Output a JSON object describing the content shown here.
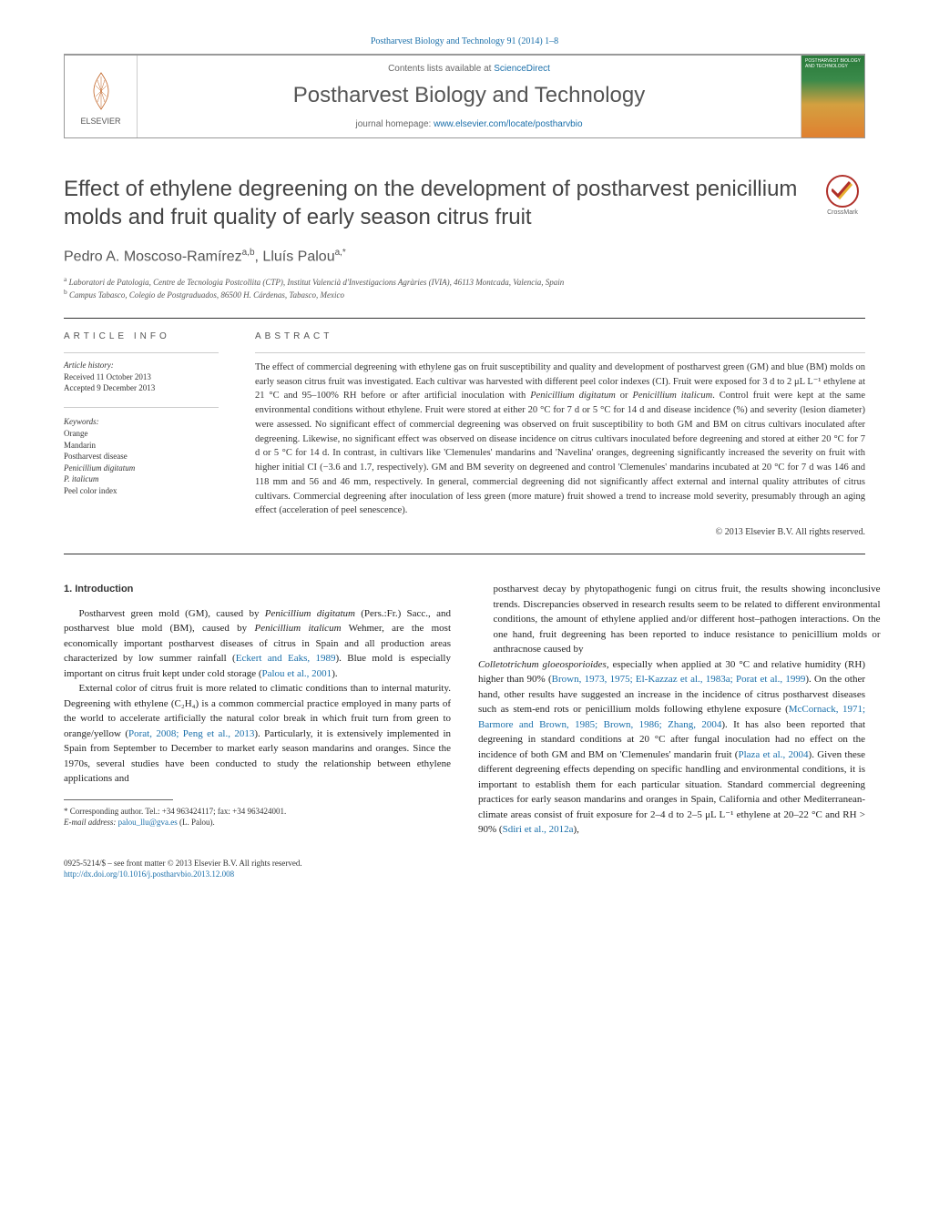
{
  "journal_ref": "Postharvest Biology and Technology 91 (2014) 1–8",
  "header": {
    "contents_pre": "Contents lists available at ",
    "contents_link": "ScienceDirect",
    "journal_name": "Postharvest Biology and Technology",
    "homepage_pre": "journal homepage: ",
    "homepage_url": "www.elsevier.com/locate/postharvbio",
    "publisher": "ELSEVIER",
    "cover_text": "POSTHARVEST BIOLOGY AND TECHNOLOGY"
  },
  "title": "Effect of ethylene degreening on the development of postharvest penicillium molds and fruit quality of early season citrus fruit",
  "crossmark": "CrossMark",
  "authors_html": "Pedro A. Moscoso-Ramírez<sup>a,b</sup>, Lluís Palou<sup>a,*</sup>",
  "affiliations": {
    "a": "Laboratori de Patologia, Centre de Tecnologia Postcollita (CTP), Institut Valencià d'Investigacions Agràries (IVIA), 46113 Montcada, Valencia, Spain",
    "b": "Campus Tabasco, Colegio de Postgraduados, 86500 H. Cárdenas, Tabasco, Mexico"
  },
  "article_info": {
    "heading": "ARTICLE INFO",
    "history_head": "Article history:",
    "received": "Received 11 October 2013",
    "accepted": "Accepted 9 December 2013",
    "keywords_head": "Keywords:",
    "keywords": [
      "Orange",
      "Mandarin",
      "Postharvest disease",
      "Penicillium digitatum",
      "P. italicum",
      "Peel color index"
    ]
  },
  "abstract": {
    "heading": "ABSTRACT",
    "text": "The effect of commercial degreening with ethylene gas on fruit susceptibility and quality and development of postharvest green (GM) and blue (BM) molds on early season citrus fruit was investigated. Each cultivar was harvested with different peel color indexes (CI). Fruit were exposed for 3 d to 2 μL L⁻¹ ethylene at 21 °C and 95–100% RH before or after artificial inoculation with Penicillium digitatum or Penicillium italicum. Control fruit were kept at the same environmental conditions without ethylene. Fruit were stored at either 20 °C for 7 d or 5 °C for 14 d and disease incidence (%) and severity (lesion diameter) were assessed. No significant effect of commercial degreening was observed on fruit susceptibility to both GM and BM on citrus cultivars inoculated after degreening. Likewise, no significant effect was observed on disease incidence on citrus cultivars inoculated before degreening and stored at either 20 °C for 7 d or 5 °C for 14 d. In contrast, in cultivars like 'Clemenules' mandarins and 'Navelina' oranges, degreening significantly increased the severity on fruit with higher initial CI (−3.6 and 1.7, respectively). GM and BM severity on degreened and control 'Clemenules' mandarins incubated at 20 °C for 7 d was 146 and 118 mm and 56 and 46 mm, respectively. In general, commercial degreening did not significantly affect external and internal quality attributes of citrus cultivars. Commercial degreening after inoculation of less green (more mature) fruit showed a trend to increase mold severity, presumably through an aging effect (acceleration of peel senescence).",
    "copyright": "© 2013 Elsevier B.V. All rights reserved."
  },
  "body": {
    "heading": "1. Introduction",
    "p1_pre": "Postharvest green mold (GM), caused by ",
    "p1_em1": "Penicillium digitatum",
    "p1_mid1": " (Pers.:Fr.) Sacc., and postharvest blue mold (BM), caused by ",
    "p1_em2": "Penicillium italicum",
    "p1_mid2": " Wehmer, are the most economically important postharvest diseases of citrus in Spain and all production areas characterized by low summer rainfall (",
    "p1_ref1": "Eckert and Eaks, 1989",
    "p1_mid3": "). Blue mold is especially important on citrus fruit kept under cold storage (",
    "p1_ref2": "Palou et al., 2001",
    "p1_end": ").",
    "p2_pre": "External color of citrus fruit is more related to climatic conditions than to internal maturity. Degreening with ethylene (C₂H₄) is a common commercial practice employed in many parts of the world to accelerate artificially the natural color break in which fruit turn from green to orange/yellow (",
    "p2_ref1": "Porat, 2008; Peng et al., 2013",
    "p2_end": "). Particularly, it is extensively implemented in Spain from September to December to market early season mandarins and oranges. Since the 1970s, several studies have been conducted to study the relationship between ethylene applications and",
    "p3_pre": "postharvest decay by phytopathogenic fungi on citrus fruit, the results showing inconclusive trends. Discrepancies observed in research results seem to be related to different environmental conditions, the amount of ethylene applied and/or different host–pathogen interactions. On the one hand, fruit degreening has been reported to induce resistance to penicillium molds or anthracnose caused by ",
    "p3_em1": "Colletotrichum gloeosporioides",
    "p3_mid1": ", especially when applied at 30 °C and relative humidity (RH) higher than 90% (",
    "p3_ref1": "Brown, 1973, 1975; El-Kazzaz et al., 1983a; Porat et al., 1999",
    "p3_mid2": "). On the other hand, other results have suggested an increase in the incidence of citrus postharvest diseases such as stem-end rots or penicillium molds following ethylene exposure (",
    "p3_ref2": "McCornack, 1971; Barmore and Brown, 1985; Brown, 1986; Zhang, 2004",
    "p3_mid3": "). It has also been reported that degreening in standard conditions at 20 °C after fungal inoculation had no effect on the incidence of both GM and BM on 'Clemenules' mandarin fruit (",
    "p3_ref3": "Plaza et al., 2004",
    "p3_mid4": "). Given these different degreening effects depending on specific handling and environmental conditions, it is important to establish them for each particular situation. Standard commercial degreening practices for early season mandarins and oranges in Spain, California and other Mediterranean-climate areas consist of fruit exposure for 2–4 d to 2–5 μL L⁻¹ ethylene at 20–22 °C and RH > 90% (",
    "p3_ref4": "Sdiri et al., 2012a",
    "p3_end": "),"
  },
  "footnote": {
    "corr": "* Corresponding author. Tel.: +34 963424117; fax: +34 963424001.",
    "email_label": "E-mail address: ",
    "email": "palou_llu@gva.es",
    "email_who": " (L. Palou)."
  },
  "footer": {
    "issn": "0925-5214/$ – see front matter © 2013 Elsevier B.V. All rights reserved.",
    "doi": "http://dx.doi.org/10.1016/j.postharvbio.2013.12.008"
  },
  "colors": {
    "link": "#1a6faa",
    "text": "#333333",
    "rule": "#333333",
    "cover_gradient_top": "#2a7a3a",
    "cover_gradient_bottom": "#e08030",
    "crossmark_ring": "#b0302a"
  }
}
